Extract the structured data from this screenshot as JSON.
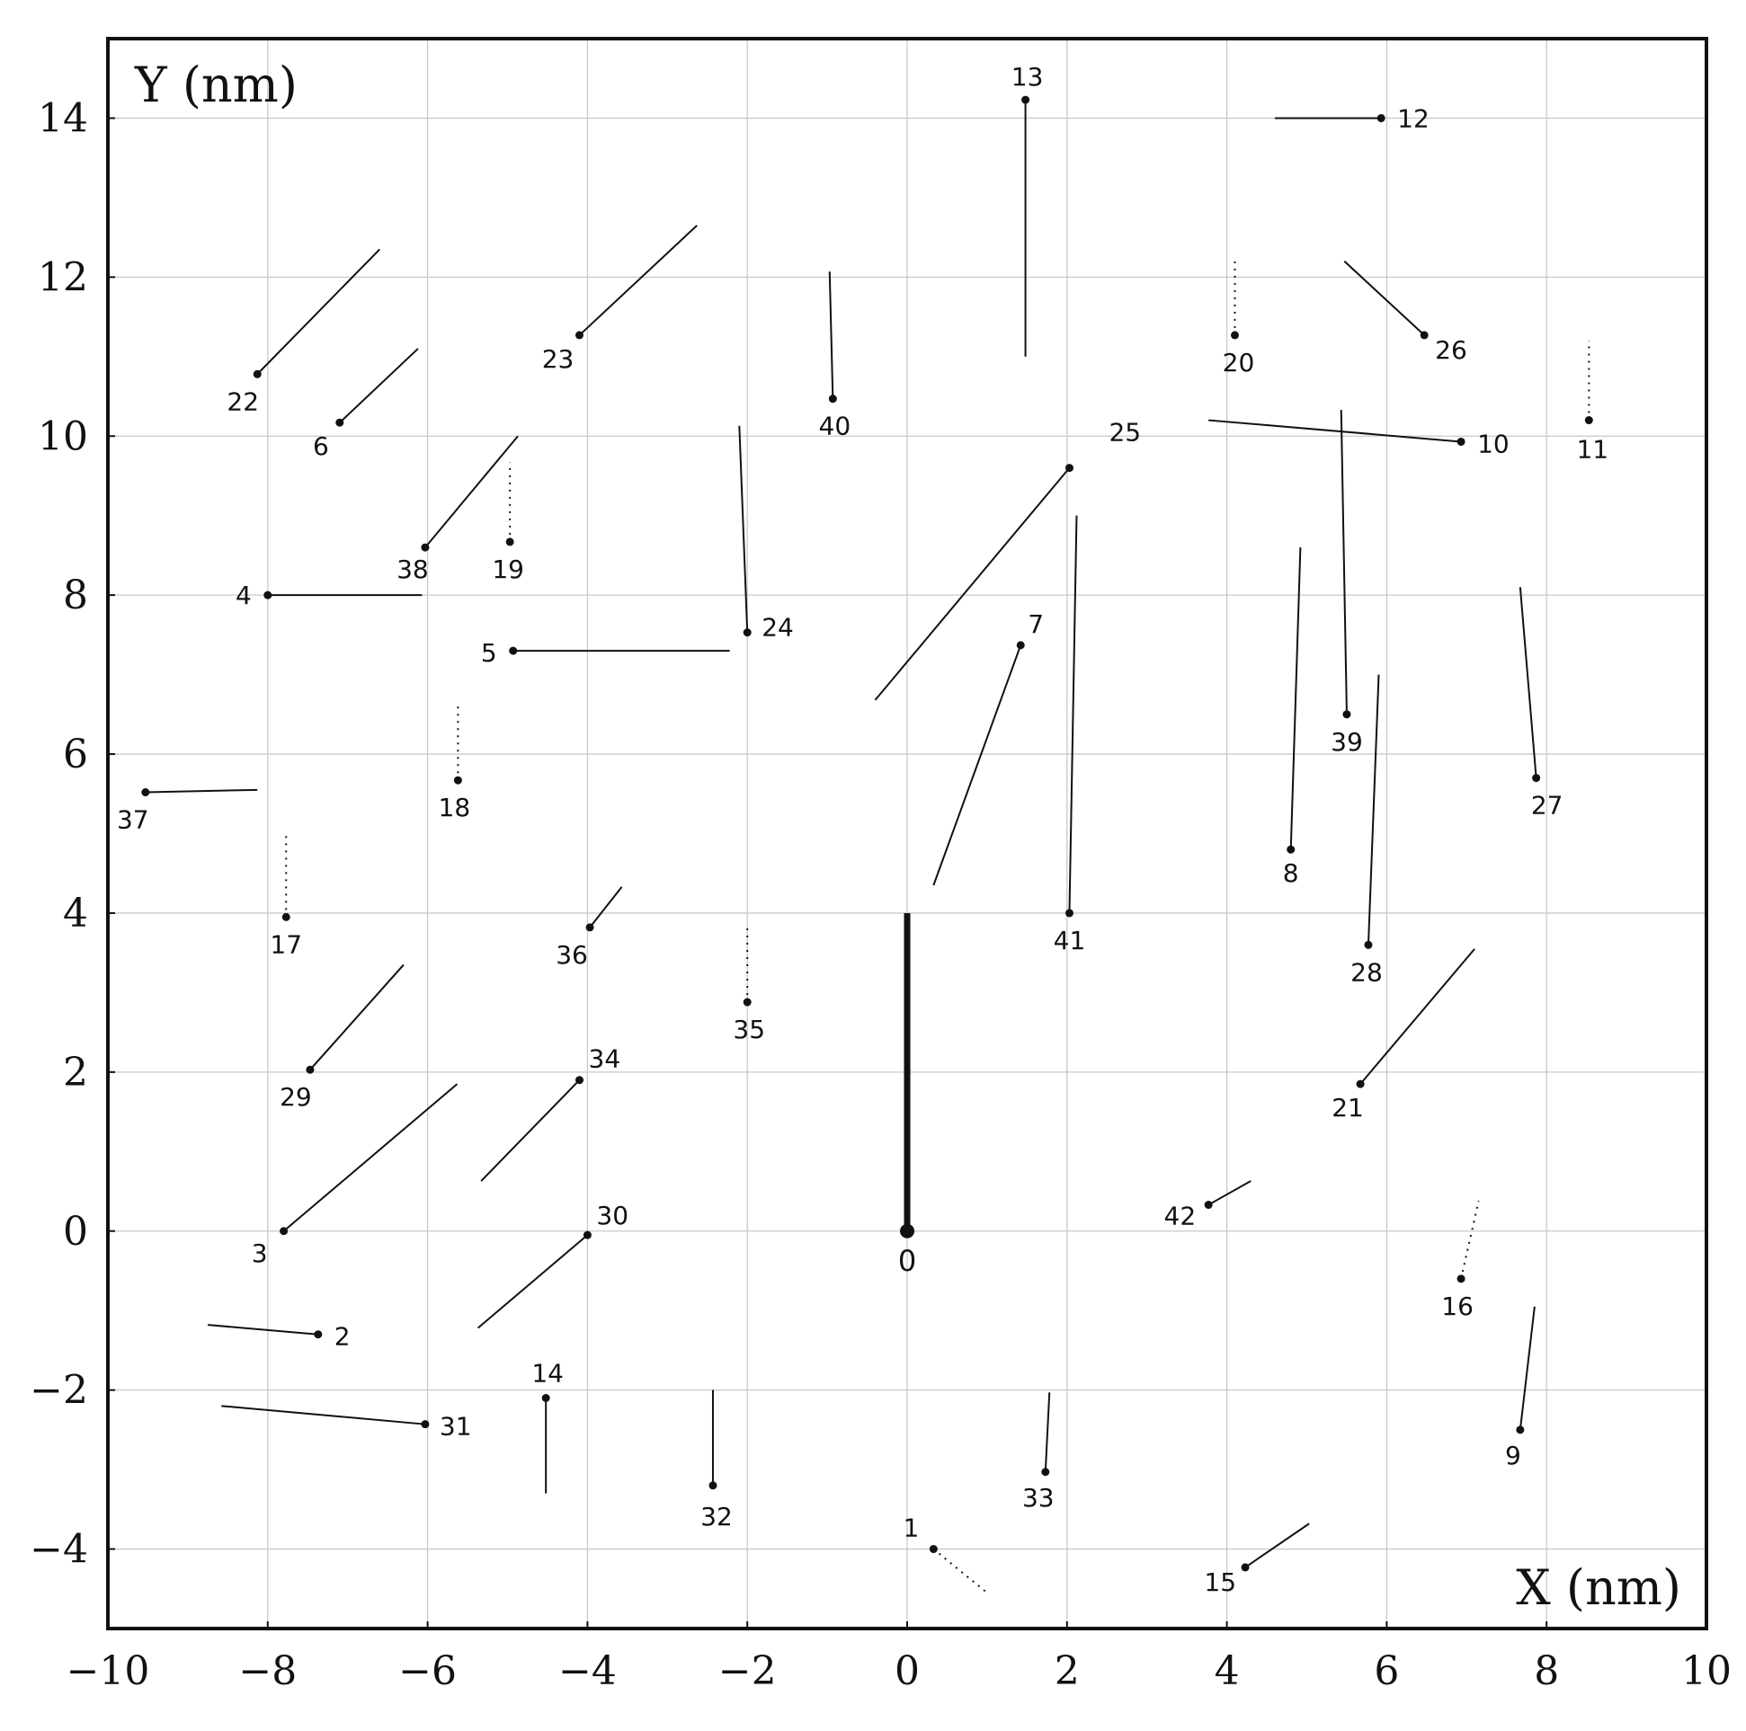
{
  "chart_data": {
    "type": "scatter",
    "title": "",
    "xlabel": "X (nm)",
    "ylabel": "Y (nm)",
    "xlim": [
      -10,
      10
    ],
    "ylim": [
      -5,
      15
    ],
    "xticks": [
      -10,
      -8,
      -6,
      -4,
      -2,
      0,
      2,
      4,
      6,
      8,
      10
    ],
    "yticks": [
      -4,
      -2,
      0,
      2,
      4,
      6,
      8,
      10,
      12,
      14
    ],
    "xtick_labels": [
      "−10",
      "−8",
      "−6",
      "−4",
      "−2",
      "0",
      "2",
      "4",
      "6",
      "8",
      "10"
    ],
    "ytick_labels": [
      "−4",
      "−2",
      "0",
      "2",
      "4",
      "6",
      "8",
      "10",
      "12",
      "14"
    ],
    "grid": true,
    "points": [
      {
        "label": "0",
        "x": 0.0,
        "y": 0.0,
        "x2": 0.0,
        "y2": 4.0,
        "style": "thick"
      },
      {
        "label": "1",
        "x": 0.33,
        "y": -4.0,
        "x2": 1.0,
        "y2": -4.55,
        "style": "dotted"
      },
      {
        "label": "2",
        "x": -7.37,
        "y": -1.3,
        "x2": -8.75,
        "y2": -1.18,
        "style": "solid"
      },
      {
        "label": "3",
        "x": -7.8,
        "y": 0.0,
        "x2": -5.63,
        "y2": 1.85,
        "style": "solid"
      },
      {
        "label": "4",
        "x": -8.0,
        "y": 8.0,
        "x2": -6.07,
        "y2": 8.0,
        "style": "solid"
      },
      {
        "label": "5",
        "x": -4.93,
        "y": 7.3,
        "x2": -2.22,
        "y2": 7.3,
        "style": "solid"
      },
      {
        "label": "6",
        "x": -7.1,
        "y": 10.17,
        "x2": -6.12,
        "y2": 11.1,
        "style": "solid"
      },
      {
        "label": "7",
        "x": 1.42,
        "y": 7.37,
        "x2": 0.33,
        "y2": 4.35,
        "style": "solid"
      },
      {
        "label": "8",
        "x": 4.8,
        "y": 4.8,
        "x2": 4.92,
        "y2": 8.6,
        "style": "solid"
      },
      {
        "label": "9",
        "x": 7.67,
        "y": -2.5,
        "x2": 7.85,
        "y2": -0.95,
        "style": "solid"
      },
      {
        "label": "10",
        "x": 6.93,
        "y": 9.93,
        "x2": 3.77,
        "y2": 10.2,
        "style": "solid"
      },
      {
        "label": "11",
        "x": 8.53,
        "y": 10.2,
        "x2": 8.53,
        "y2": 11.2,
        "style": "dotted"
      },
      {
        "label": "12",
        "x": 5.93,
        "y": 14.0,
        "x2": 4.6,
        "y2": 14.0,
        "style": "solid"
      },
      {
        "label": "13",
        "x": 1.48,
        "y": 14.23,
        "x2": 1.48,
        "y2": 11.0,
        "style": "solid"
      },
      {
        "label": "14",
        "x": -4.52,
        "y": -2.1,
        "x2": -4.52,
        "y2": -3.3,
        "style": "solid"
      },
      {
        "label": "15",
        "x": 4.23,
        "y": -4.23,
        "x2": 5.03,
        "y2": -3.68,
        "style": "solid"
      },
      {
        "label": "16",
        "x": 6.93,
        "y": -0.6,
        "x2": 7.15,
        "y2": 0.38,
        "style": "dotted"
      },
      {
        "label": "17",
        "x": -7.77,
        "y": 3.95,
        "x2": -7.77,
        "y2": 4.97,
        "style": "dotted"
      },
      {
        "label": "18",
        "x": -5.62,
        "y": 5.67,
        "x2": -5.62,
        "y2": 6.63,
        "style": "dotted"
      },
      {
        "label": "19",
        "x": -4.97,
        "y": 8.67,
        "x2": -4.97,
        "y2": 9.67,
        "style": "dotted"
      },
      {
        "label": "20",
        "x": 4.1,
        "y": 11.27,
        "x2": 4.1,
        "y2": 12.2,
        "style": "dotted"
      },
      {
        "label": "21",
        "x": 5.67,
        "y": 1.85,
        "x2": 7.1,
        "y2": 3.55,
        "style": "solid"
      },
      {
        "label": "22",
        "x": -8.13,
        "y": 10.78,
        "x2": -6.6,
        "y2": 12.35,
        "style": "solid"
      },
      {
        "label": "23",
        "x": -4.1,
        "y": 11.27,
        "x2": -2.63,
        "y2": 12.65,
        "style": "solid"
      },
      {
        "label": "24",
        "x": -2.0,
        "y": 7.53,
        "x2": -2.1,
        "y2": 10.13,
        "style": "solid"
      },
      {
        "label": "25",
        "x": 2.03,
        "y": 9.6,
        "x2": -0.4,
        "y2": 6.68,
        "style": "solid"
      },
      {
        "label": "26",
        "x": 6.47,
        "y": 11.27,
        "x2": 5.47,
        "y2": 12.2,
        "style": "solid"
      },
      {
        "label": "27",
        "x": 7.87,
        "y": 5.7,
        "x2": 7.67,
        "y2": 8.1,
        "style": "solid"
      },
      {
        "label": "28",
        "x": 5.77,
        "y": 3.6,
        "x2": 5.9,
        "y2": 7.0,
        "style": "solid"
      },
      {
        "label": "29",
        "x": -7.47,
        "y": 2.03,
        "x2": -6.3,
        "y2": 3.35,
        "style": "solid"
      },
      {
        "label": "30",
        "x": -4.0,
        "y": -0.05,
        "x2": -5.37,
        "y2": -1.22,
        "style": "solid"
      },
      {
        "label": "31",
        "x": -6.03,
        "y": -2.43,
        "x2": -8.58,
        "y2": -2.2,
        "style": "solid"
      },
      {
        "label": "32",
        "x": -2.43,
        "y": -3.2,
        "x2": -2.43,
        "y2": -2.0,
        "style": "solid"
      },
      {
        "label": "33",
        "x": 1.73,
        "y": -3.03,
        "x2": 1.78,
        "y2": -2.03,
        "style": "solid"
      },
      {
        "label": "34",
        "x": -4.1,
        "y": 1.9,
        "x2": -5.33,
        "y2": 0.63,
        "style": "solid"
      },
      {
        "label": "35",
        "x": -2.0,
        "y": 2.88,
        "x2": -2.0,
        "y2": 3.85,
        "style": "dotted"
      },
      {
        "label": "36",
        "x": -3.97,
        "y": 3.82,
        "x2": -3.57,
        "y2": 4.33,
        "style": "solid"
      },
      {
        "label": "37",
        "x": -9.53,
        "y": 5.52,
        "x2": -8.13,
        "y2": 5.55,
        "style": "solid"
      },
      {
        "label": "38",
        "x": -6.03,
        "y": 8.6,
        "x2": -4.87,
        "y2": 10.0,
        "style": "solid"
      },
      {
        "label": "39",
        "x": 5.5,
        "y": 6.5,
        "x2": 5.43,
        "y2": 10.33,
        "style": "solid"
      },
      {
        "label": "40",
        "x": -0.93,
        "y": 10.47,
        "x2": -0.97,
        "y2": 12.07,
        "style": "solid"
      },
      {
        "label": "41",
        "x": 2.03,
        "y": 4.0,
        "x2": 2.12,
        "y2": 9.0,
        "style": "solid"
      },
      {
        "label": "42",
        "x": 3.77,
        "y": 0.33,
        "x2": 4.3,
        "y2": 0.63,
        "style": "solid"
      }
    ]
  }
}
